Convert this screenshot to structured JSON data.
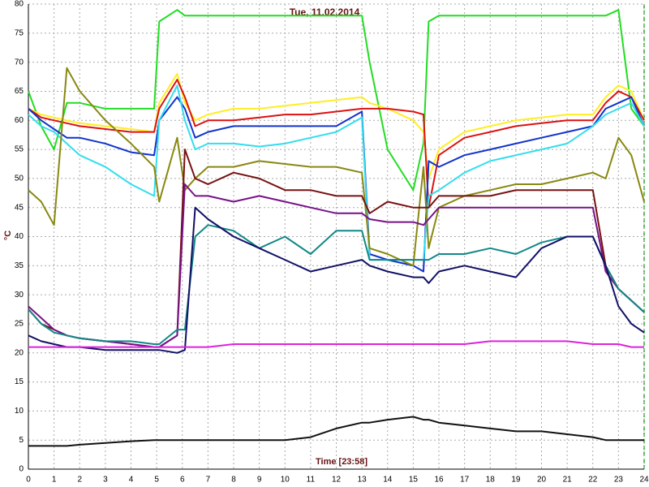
{
  "chart_data": {
    "type": "line",
    "title": "Tue, 11.02.2014",
    "xlabel": "Time [23:58]",
    "ylabel": "°C",
    "x": [
      0,
      0.5,
      1,
      1.5,
      2,
      3,
      4,
      4.9,
      5.1,
      5.8,
      6.1,
      6.5,
      7,
      8,
      9,
      10,
      11,
      12,
      13,
      13.3,
      14,
      15,
      15.4,
      15.6,
      16,
      17,
      18,
      19,
      20,
      21,
      22,
      22.5,
      23,
      23.5,
      24
    ],
    "series": [
      {
        "color": "#22dd22",
        "values": [
          65,
          59,
          55,
          63,
          63,
          62,
          62,
          62,
          77,
          79,
          78,
          78,
          78,
          78,
          78,
          78,
          78,
          78,
          78,
          70,
          55,
          48,
          56,
          77,
          78,
          78,
          78,
          78,
          78,
          78,
          78,
          78,
          79,
          62,
          59
        ]
      },
      {
        "color": "#ffee22",
        "values": [
          62,
          61,
          60.5,
          60,
          59.5,
          59,
          58.5,
          58,
          63,
          68,
          63,
          60,
          61,
          62,
          62,
          62.5,
          63,
          63.5,
          64,
          63,
          62,
          60,
          58,
          50,
          55,
          58,
          59,
          60,
          60.5,
          61,
          61,
          64,
          66,
          65,
          60
        ]
      },
      {
        "color": "#dd1111",
        "values": [
          62,
          60.5,
          60,
          59.5,
          59,
          58.5,
          58,
          58,
          62,
          67,
          64,
          59,
          60,
          60,
          60.5,
          61,
          61,
          61.5,
          62,
          62,
          62,
          61.5,
          61,
          45,
          54,
          57,
          58,
          59,
          59.5,
          60,
          60,
          63,
          65,
          64,
          60
        ]
      },
      {
        "color": "#1133cc",
        "values": [
          62,
          60,
          58.5,
          57,
          57,
          56,
          54.5,
          54,
          60,
          64,
          62,
          57,
          58,
          59,
          59,
          59,
          59,
          59,
          61.5,
          37,
          36,
          35,
          34,
          53,
          52,
          54,
          55,
          56,
          57,
          58,
          59,
          62,
          63,
          64,
          59
        ]
      },
      {
        "color": "#33ddee",
        "values": [
          61,
          59,
          58,
          56,
          54,
          52,
          49,
          47,
          60,
          66,
          60,
          55,
          56,
          56,
          55.5,
          56,
          57,
          58,
          60.5,
          36,
          36,
          36,
          36,
          47,
          48,
          51,
          53,
          54,
          55,
          56,
          59,
          61,
          62,
          63,
          59
        ]
      },
      {
        "color": "#888811",
        "values": [
          48,
          46,
          42,
          69,
          65,
          60,
          56,
          52,
          46,
          57,
          48,
          50,
          52,
          52,
          53,
          52.5,
          52,
          52,
          51,
          38,
          37,
          35,
          52,
          38,
          45,
          47,
          48,
          49,
          49,
          50,
          51,
          50,
          57,
          54,
          46
        ]
      },
      {
        "color": "#771111",
        "values": [
          27.5,
          25,
          24,
          23,
          22.5,
          22,
          21.5,
          21,
          21,
          23,
          55,
          50,
          49,
          51,
          50,
          48,
          48,
          47,
          47,
          44,
          46,
          45,
          45,
          45,
          47,
          47,
          47,
          48,
          48,
          48,
          48,
          35,
          31,
          29,
          27
        ]
      },
      {
        "color": "#771188",
        "values": [
          28,
          26,
          24,
          23,
          22.5,
          22,
          21.5,
          21,
          21,
          23,
          49,
          47,
          47,
          46,
          47,
          46,
          45,
          44,
          44,
          43,
          42.5,
          42.5,
          42,
          43,
          45,
          45,
          45,
          45,
          45,
          45,
          45,
          34,
          31,
          29,
          27
        ]
      },
      {
        "color": "#118888",
        "values": [
          27.5,
          25,
          23.5,
          23,
          22.5,
          22,
          22,
          21.5,
          21.5,
          24,
          24,
          40,
          42,
          41,
          38,
          40,
          37,
          41,
          41,
          36,
          36,
          36,
          36,
          36,
          37,
          37,
          38,
          37,
          39,
          40,
          40,
          35,
          31,
          29,
          27
        ]
      },
      {
        "color": "#111166",
        "values": [
          23,
          22,
          21.5,
          21,
          21,
          20.5,
          20.5,
          20.5,
          20.5,
          20,
          20.5,
          45,
          43,
          40,
          38,
          36,
          34,
          35,
          36,
          35,
          34,
          33,
          33,
          32,
          34,
          35,
          34,
          33,
          38,
          40,
          40,
          35,
          28,
          25,
          23.5
        ]
      },
      {
        "color": "#dd22dd",
        "values": [
          21,
          21,
          21,
          21,
          21,
          21,
          21,
          21,
          21,
          21,
          21,
          21,
          21,
          21.5,
          21.5,
          21.5,
          21.5,
          21.5,
          21.5,
          21.5,
          21.5,
          21.5,
          21.5,
          21.5,
          21.5,
          21.5,
          22,
          22,
          22,
          22,
          21.5,
          21.5,
          21.5,
          21,
          21
        ]
      },
      {
        "color": "#111111",
        "values": [
          4,
          4,
          4,
          4,
          4.2,
          4.5,
          4.8,
          5,
          5,
          5,
          5,
          5,
          5,
          5,
          5,
          5,
          5.5,
          7,
          8,
          8,
          8.5,
          9,
          8.5,
          8.5,
          8,
          7.5,
          7,
          6.5,
          6.5,
          6,
          5.5,
          5,
          5,
          5,
          5
        ]
      }
    ],
    "xlim": [
      0,
      24
    ],
    "xticks": [
      0,
      1,
      2,
      3,
      4,
      5,
      6,
      7,
      8,
      9,
      10,
      11,
      12,
      13,
      14,
      15,
      16,
      17,
      18,
      19,
      20,
      21,
      22,
      23,
      24
    ],
    "ylim": [
      0,
      80
    ],
    "yticks": [
      0,
      5,
      10,
      15,
      20,
      25,
      30,
      35,
      40,
      45,
      50,
      55,
      60,
      65,
      70,
      75,
      80
    ],
    "grid": true
  }
}
